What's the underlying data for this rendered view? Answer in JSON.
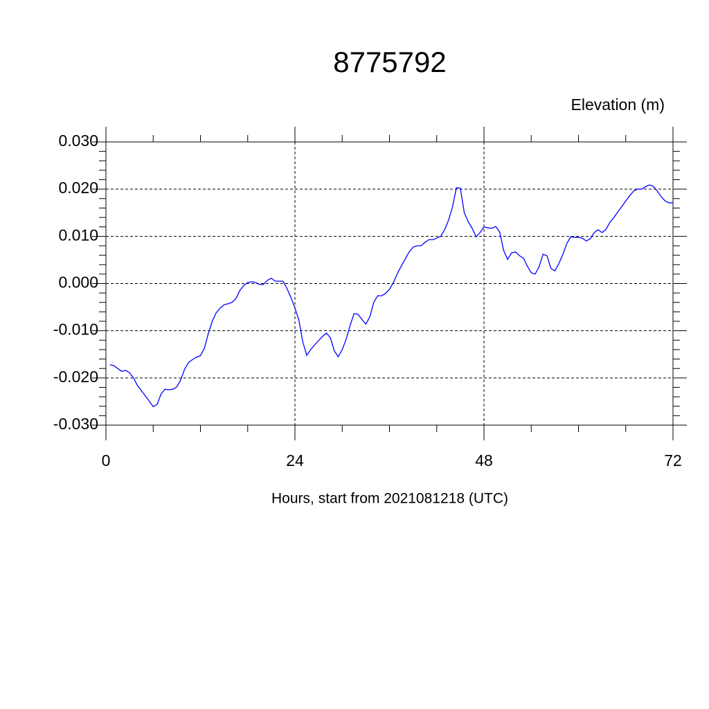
{
  "chart_data": {
    "type": "line",
    "title": "8775792",
    "ylabel": "Elevation (m)",
    "xlabel": "Hours, start from 2021081218 (UTC)",
    "xlim": [
      0,
      72
    ],
    "xticks": [
      0,
      24,
      48,
      72
    ],
    "xminorticks": [
      6,
      12,
      18,
      30,
      36,
      42,
      54,
      60,
      66
    ],
    "ylim": [
      -0.03,
      0.03
    ],
    "yticks": [
      {
        "value": -0.03,
        "label": "-0.030"
      },
      {
        "value": -0.02,
        "label": "-0.020"
      },
      {
        "value": -0.01,
        "label": "-0.010"
      },
      {
        "value": 0,
        "label": "0.000"
      },
      {
        "value": 0.01,
        "label": "0.010"
      },
      {
        "value": 0.02,
        "label": "0.020"
      },
      {
        "value": 0.03,
        "label": "0.030"
      }
    ],
    "yminorticks": [
      -0.028,
      -0.026,
      -0.024,
      -0.022,
      -0.018,
      -0.016,
      -0.014,
      -0.012,
      -0.008,
      -0.006,
      -0.004,
      -0.002,
      0.002,
      0.004,
      0.006,
      0.008,
      0.012,
      0.014,
      0.016,
      0.018,
      0.022,
      0.024,
      0.026,
      0.028
    ],
    "grid": true,
    "x": [
      0.5,
      1,
      1.5,
      2,
      2.5,
      3,
      3.5,
      4,
      4.5,
      5,
      5.5,
      6,
      6.5,
      7,
      7.5,
      8,
      8.5,
      9,
      9.5,
      10,
      10.5,
      11,
      11.5,
      12,
      12.5,
      13,
      13.5,
      14,
      14.5,
      15,
      15.5,
      16,
      16.5,
      17,
      17.5,
      18,
      18.5,
      19,
      19.5,
      20,
      20.5,
      21,
      21.5,
      22,
      22.5,
      23,
      23.5,
      24,
      24.5,
      25,
      25.5,
      26,
      26.5,
      27,
      27.5,
      28,
      28.5,
      29,
      29.5,
      30,
      30.5,
      31,
      31.5,
      32,
      32.5,
      33,
      33.5,
      34,
      34.5,
      35,
      35.5,
      36,
      36.5,
      37,
      37.5,
      38,
      38.5,
      39,
      39.5,
      40,
      40.5,
      41,
      41.5,
      42,
      42.5,
      43,
      43.5,
      44,
      44.5,
      45,
      45.5,
      46,
      46.5,
      47,
      47.5,
      48,
      48.5,
      49,
      49.5,
      50,
      50.5,
      51,
      51.5,
      52,
      52.5,
      53,
      53.5,
      54,
      54.5,
      55,
      55.5,
      56,
      56.5,
      57,
      57.5,
      58,
      58.5,
      59,
      59.5,
      60,
      60.5,
      61,
      61.5,
      62,
      62.5,
      63,
      63.5,
      64,
      64.5,
      65,
      65.5,
      66,
      66.5,
      67,
      67.5,
      68,
      68.5,
      69,
      69.5,
      70,
      70.5,
      71,
      71.5,
      72
    ],
    "series": [
      {
        "color": "#0000ff",
        "values": [
          -0.0172,
          -0.0174,
          -0.018,
          -0.0186,
          -0.0184,
          -0.0189,
          -0.02,
          -0.0216,
          -0.0227,
          -0.0238,
          -0.0249,
          -0.0261,
          -0.0256,
          -0.0234,
          -0.0224,
          -0.0225,
          -0.0224,
          -0.0219,
          -0.0204,
          -0.0181,
          -0.0167,
          -0.0161,
          -0.0156,
          -0.0153,
          -0.0137,
          -0.0106,
          -0.008,
          -0.0062,
          -0.0052,
          -0.0045,
          -0.0043,
          -0.004,
          -0.0032,
          -0.0015,
          -0.0004,
          0.0002,
          0.0004,
          0.0002,
          -0.0002,
          -0.0002,
          0.0007,
          0.0011,
          0.0005,
          0.0005,
          0.0005,
          -0.0011,
          -0.003,
          -0.0052,
          -0.0078,
          -0.0124,
          -0.0152,
          -0.014,
          -0.013,
          -0.0121,
          -0.0112,
          -0.0105,
          -0.0115,
          -0.0143,
          -0.0155,
          -0.014,
          -0.0118,
          -0.0089,
          -0.0064,
          -0.0065,
          -0.0076,
          -0.0086,
          -0.0071,
          -0.004,
          -0.0026,
          -0.0026,
          -0.0021,
          -0.0012,
          0.0002,
          0.0021,
          0.0037,
          0.0052,
          0.0067,
          0.0077,
          0.008,
          0.008,
          0.0087,
          0.0093,
          0.0093,
          0.0096,
          0.01,
          0.0114,
          0.0134,
          0.0162,
          0.0203,
          0.0202,
          0.015,
          0.0131,
          0.0117,
          0.0099,
          0.0108,
          0.012,
          0.0118,
          0.0117,
          0.0121,
          0.0109,
          0.007,
          0.0051,
          0.0065,
          0.0067,
          0.0059,
          0.0054,
          0.0037,
          0.0023,
          0.002,
          0.0036,
          0.0062,
          0.0059,
          0.0032,
          0.0027,
          0.0042,
          0.0061,
          0.0084,
          0.0099,
          0.0098,
          0.0098,
          0.0096,
          0.009,
          0.0095,
          0.0108,
          0.0114,
          0.0108,
          0.0115,
          0.013,
          0.014,
          0.0152,
          0.0163,
          0.0175,
          0.0186,
          0.0196,
          0.02,
          0.02,
          0.0205,
          0.0209,
          0.0206,
          0.0196,
          0.0184,
          0.0175,
          0.0171,
          0.0171
        ]
      }
    ]
  }
}
